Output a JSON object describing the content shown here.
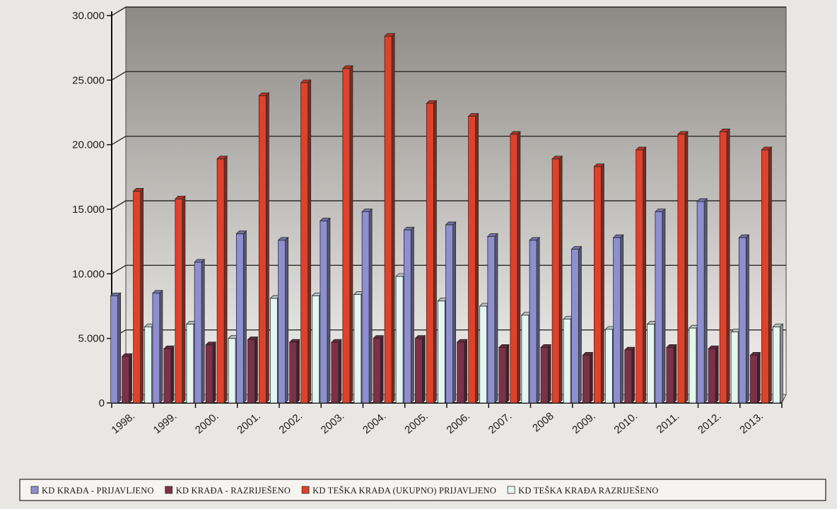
{
  "chart_data": {
    "type": "bar",
    "categories": [
      "1998.",
      "1999.",
      "2000.",
      "2001.",
      "2002.",
      "2003.",
      "2004.",
      "2005.",
      "2006.",
      "2007.",
      "2008",
      "2009.",
      "2010.",
      "2011.",
      "2012.",
      "2013."
    ],
    "series": [
      {
        "name": "KD KRAĐA - PRIJAVLJENO",
        "color": "#8e8fcf",
        "values": [
          8300,
          8500,
          10900,
          13100,
          12600,
          14100,
          14800,
          13400,
          13800,
          12900,
          12600,
          11900,
          12800,
          14800,
          15600,
          12800
        ]
      },
      {
        "name": "KD KRAĐA - RAZRIJEŠENO",
        "color": "#7c3148",
        "values": [
          3600,
          4200,
          4500,
          4900,
          4700,
          4700,
          5000,
          5000,
          4700,
          4300,
          4300,
          3700,
          4100,
          4300,
          4200,
          3700
        ]
      },
      {
        "name": "KD TEŠKA KRAĐA (UKUPNO) PRIJAVLJENO",
        "color": "#e0412b",
        "values": [
          16400,
          15800,
          18900,
          23800,
          24800,
          25900,
          28400,
          23200,
          22200,
          20800,
          18900,
          18300,
          19600,
          20800,
          21000,
          19600
        ]
      },
      {
        "name": "KD TEŠKA KRAĐA RAZRIJEŠENO",
        "color": "#e4f5f2",
        "values": [
          5900,
          6100,
          5000,
          8100,
          8300,
          8400,
          9800,
          7900,
          7500,
          6800,
          6500,
          5700,
          6100,
          5800,
          5500,
          5900
        ]
      }
    ],
    "yticks": [
      "0",
      "5.000",
      "10.000",
      "15.000",
      "20.000",
      "25.000",
      "30.000"
    ],
    "ylim": [
      0,
      30000
    ],
    "grid": true,
    "legend_position": "bottom"
  }
}
